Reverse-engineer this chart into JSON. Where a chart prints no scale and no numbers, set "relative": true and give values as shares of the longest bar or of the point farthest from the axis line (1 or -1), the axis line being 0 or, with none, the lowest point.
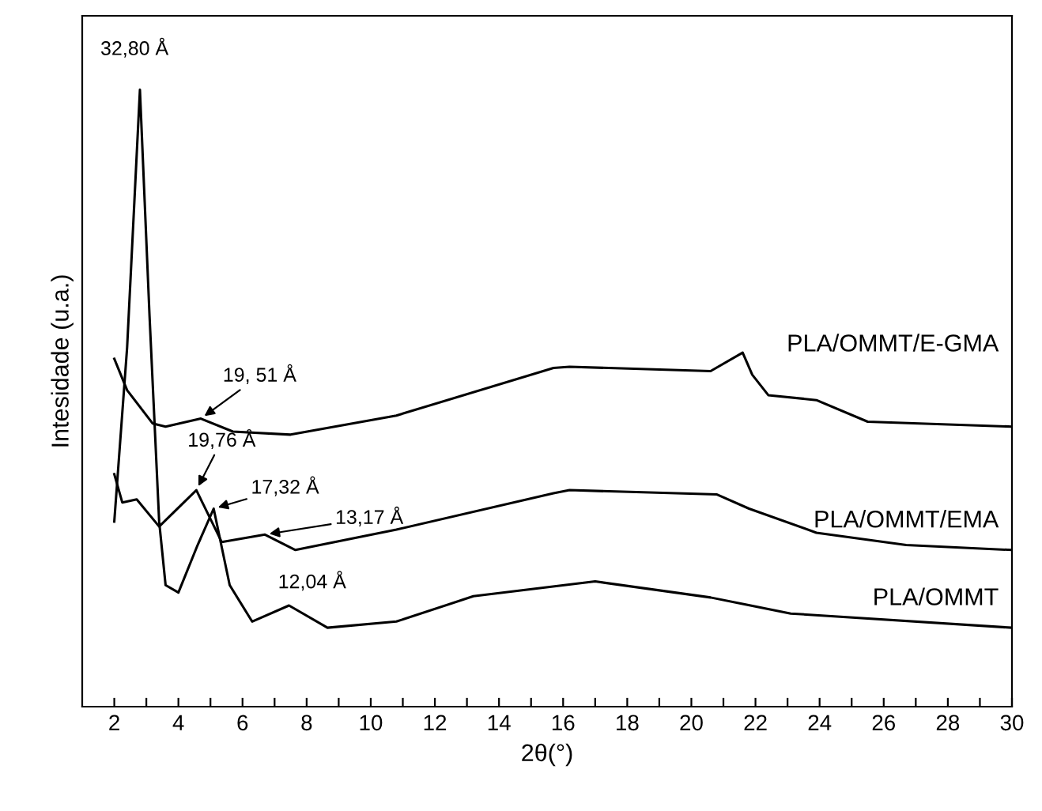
{
  "chart_data": {
    "type": "line",
    "relative": true,
    "xlabel": "2θ(°)",
    "ylabel": "Intesidade (u.a.)",
    "xlim": [
      1,
      30
    ],
    "xticks": [
      2,
      {
        "value": 3,
        "label": null
      },
      4,
      {
        "value": 5,
        "label": null
      },
      6,
      {
        "value": 7,
        "label": null
      },
      8,
      {
        "value": 9,
        "label": null
      },
      10,
      {
        "value": 11,
        "label": null
      },
      12,
      {
        "value": 13,
        "label": null
      },
      14,
      {
        "value": 15,
        "label": null
      },
      16,
      {
        "value": 17,
        "label": null
      },
      18,
      {
        "value": 19,
        "label": null
      },
      20,
      {
        "value": 21,
        "label": null
      },
      22,
      {
        "value": 23,
        "label": null
      },
      24,
      {
        "value": 25,
        "label": null
      },
      26,
      {
        "value": 27,
        "label": null
      },
      28,
      {
        "value": 29,
        "label": null
      },
      30
    ],
    "tick_labels": "x",
    "grid": false,
    "legend": false,
    "marker": "none",
    "line_style": "solid",
    "series": [
      {
        "name": "PLA/OMMT/E-GMA",
        "color": "#000000",
        "x": [
          2.0,
          2.4,
          3.2,
          3.6,
          4.7,
          5.7,
          7.5,
          10.8,
          15.7,
          16.2,
          20.6,
          21.6,
          21.9,
          22.4,
          23.9,
          25.5,
          30.0
        ],
        "values": [
          0.564,
          0.513,
          0.459,
          0.454,
          0.467,
          0.446,
          0.441,
          0.472,
          0.549,
          0.551,
          0.544,
          0.574,
          0.538,
          0.505,
          0.497,
          0.462,
          0.454
        ]
      },
      {
        "name": "PLA/OMMT/EMA",
        "color": "#000000",
        "x": [
          2.0,
          2.25,
          2.7,
          3.4,
          4.56,
          5.35,
          6.7,
          7.65,
          10.8,
          15.7,
          16.2,
          20.8,
          21.8,
          23.9,
          26.7,
          30.0
        ],
        "values": [
          0.377,
          0.331,
          0.336,
          0.292,
          0.351,
          0.267,
          0.279,
          0.254,
          0.287,
          0.346,
          0.351,
          0.344,
          0.321,
          0.282,
          0.262,
          0.254
        ]
      },
      {
        "name": "PLA/OMMT",
        "color": "#000000",
        "x": [
          2.0,
          2.4,
          2.8,
          3.1,
          3.4,
          3.6,
          4.0,
          4.6,
          5.1,
          5.6,
          6.3,
          7.45,
          8.65,
          10.8,
          13.2,
          17.0,
          20.6,
          23.1,
          30.0
        ],
        "values": [
          0.3,
          0.582,
          1.0,
          0.633,
          0.3,
          0.197,
          0.185,
          0.262,
          0.321,
          0.197,
          0.138,
          0.164,
          0.128,
          0.138,
          0.179,
          0.203,
          0.177,
          0.151,
          0.128
        ]
      }
    ],
    "annotations": [
      {
        "text": "32,80 Å",
        "x": 2.8,
        "y": 1.0
      },
      {
        "text": "19, 51 Å",
        "x": 4.7,
        "y": 0.467
      },
      {
        "text": "19,76 Å",
        "x": 4.56,
        "y": 0.351
      },
      {
        "text": "17,32 Å",
        "x": 5.1,
        "y": 0.321
      },
      {
        "text": "13,17 Å",
        "x": 6.7,
        "y": 0.279
      },
      {
        "text": "12,04 Å",
        "x": 7.45,
        "y": 0.164
      }
    ]
  }
}
